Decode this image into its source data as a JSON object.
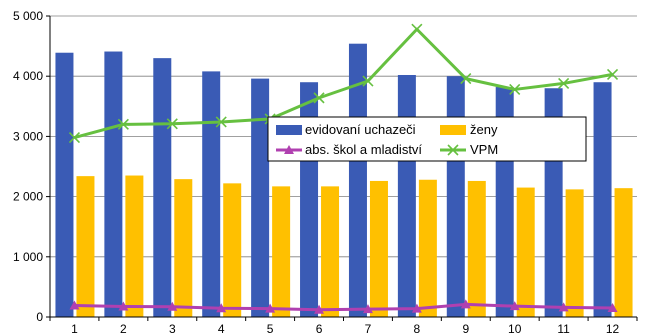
{
  "chart_data": {
    "type": "bar",
    "categories": [
      "1",
      "2",
      "3",
      "4",
      "5",
      "6",
      "7",
      "8",
      "9",
      "10",
      "11",
      "12"
    ],
    "ylim": [
      0,
      5000
    ],
    "yticks": [
      0,
      1000,
      2000,
      3000,
      4000,
      5000
    ],
    "ytick_labels": [
      "0",
      "1 000",
      "2 000",
      "3 000",
      "4 000",
      "5 000"
    ],
    "grid": true,
    "legend": "center-right",
    "bar_series": [
      {
        "name": "evidovaní uchazeči",
        "color": "#3a5bb5",
        "values": [
          4390,
          4410,
          4300,
          4080,
          3960,
          3900,
          4540,
          4020,
          4000,
          3820,
          3800,
          3900
        ]
      },
      {
        "name": "ženy",
        "color": "#ffc000",
        "values": [
          2340,
          2350,
          2290,
          2220,
          2170,
          2170,
          2260,
          2280,
          2260,
          2150,
          2120,
          2140
        ]
      }
    ],
    "line_series": [
      {
        "name": "abs. škol a mladiství",
        "color": "#b040b0",
        "marker": "triangle",
        "values": [
          190,
          175,
          170,
          145,
          140,
          120,
          130,
          140,
          210,
          180,
          160,
          150
        ]
      },
      {
        "name": "VPM",
        "color": "#66c040",
        "marker": "x",
        "values": [
          2980,
          3200,
          3210,
          3240,
          3290,
          3640,
          3920,
          4780,
          3960,
          3780,
          3880,
          4030
        ]
      }
    ]
  }
}
